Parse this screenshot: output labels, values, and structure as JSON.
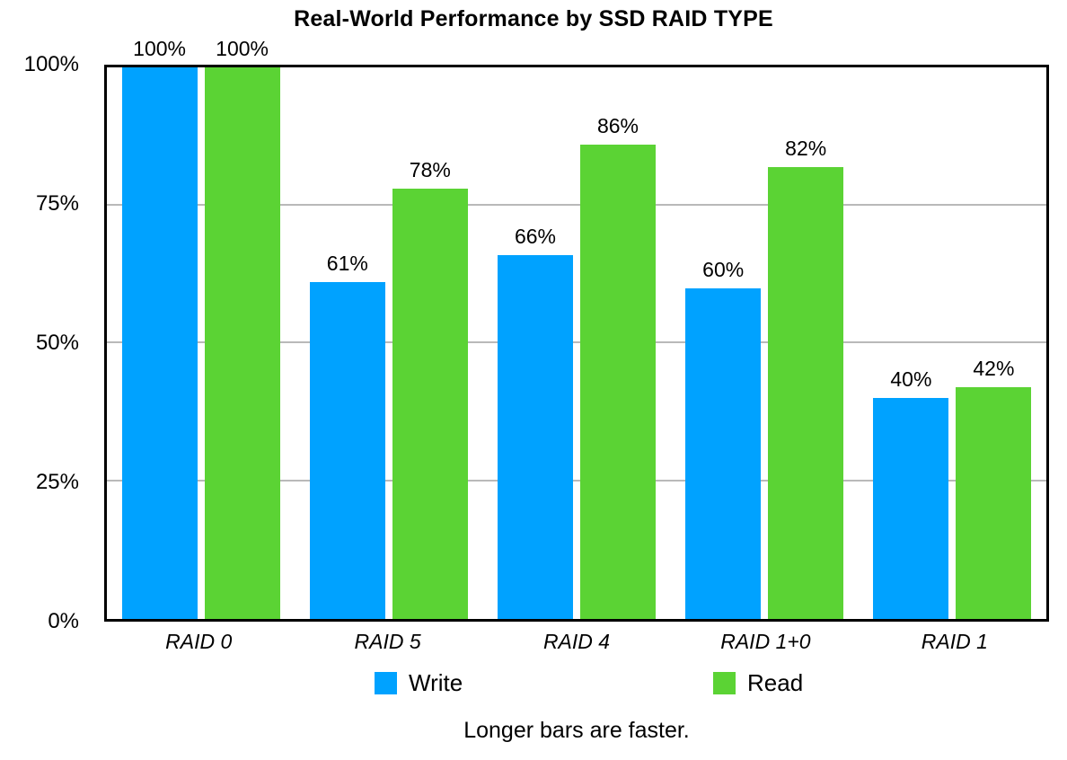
{
  "title": "Real-World Performance by SSD RAID TYPE",
  "caption": "Longer bars are faster.",
  "chart_data": {
    "type": "bar",
    "title": "Real-World Performance by SSD RAID TYPE",
    "categories": [
      "RAID 0",
      "RAID 5",
      "RAID 4",
      "RAID 1+0",
      "RAID 1"
    ],
    "series": [
      {
        "name": "Write",
        "color": "#00A2FF",
        "values": [
          100,
          61,
          66,
          60,
          40
        ]
      },
      {
        "name": "Read",
        "color": "#5BD334",
        "values": [
          100,
          78,
          86,
          82,
          42
        ]
      }
    ],
    "value_suffix": "%",
    "xlabel": "",
    "ylabel": "",
    "ylim": [
      0,
      100
    ],
    "y_ticks": [
      {
        "label": "0%",
        "value": 0
      },
      {
        "label": "25%",
        "value": 25
      },
      {
        "label": "50%",
        "value": 50
      },
      {
        "label": "75%",
        "value": 75
      },
      {
        "label": "100%",
        "value": 100
      }
    ],
    "gridlines": [
      25,
      50,
      75
    ],
    "grid_color": "#b9b9b9",
    "axis_frame_color": "#000000",
    "legend_position": "bottom",
    "annotation": "Longer bars are faster."
  }
}
